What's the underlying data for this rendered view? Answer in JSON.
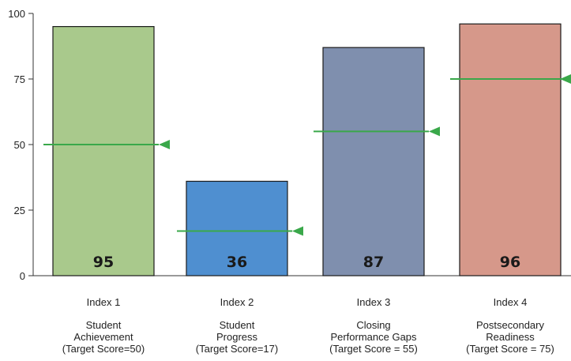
{
  "chart_data": {
    "type": "bar",
    "categories": [
      {
        "index": "Index 1",
        "lines": [
          "Student",
          "Achievement",
          "(Target Score=50)"
        ]
      },
      {
        "index": "Index 2",
        "lines": [
          "Student",
          "Progress",
          "(Target Score=17)"
        ]
      },
      {
        "index": "Index 3",
        "lines": [
          "Closing",
          "Performance Gaps",
          "(Target Score = 55)"
        ]
      },
      {
        "index": "Index 4",
        "lines": [
          "Postsecondary",
          "Readiness",
          "(Target Score = 75)"
        ]
      }
    ],
    "values": [
      95,
      36,
      87,
      96
    ],
    "value_labels": [
      "95",
      "36",
      "87",
      "96"
    ],
    "targets": [
      50,
      17,
      55,
      75
    ],
    "ylim": [
      0,
      100
    ],
    "yticks": [
      0,
      25,
      50,
      75,
      100
    ],
    "ytick_labels": [
      "0",
      "25",
      "50",
      "75",
      "100"
    ],
    "title": "",
    "xlabel": "",
    "ylabel": "",
    "grid": false,
    "colors": {
      "bars": [
        "#a9c98c",
        "#4f8fd0",
        "#7f8fae",
        "#d6988a"
      ],
      "bar_edge": "#1c1c1c",
      "target_line": "#3aa84a",
      "axis": "#333333"
    }
  }
}
